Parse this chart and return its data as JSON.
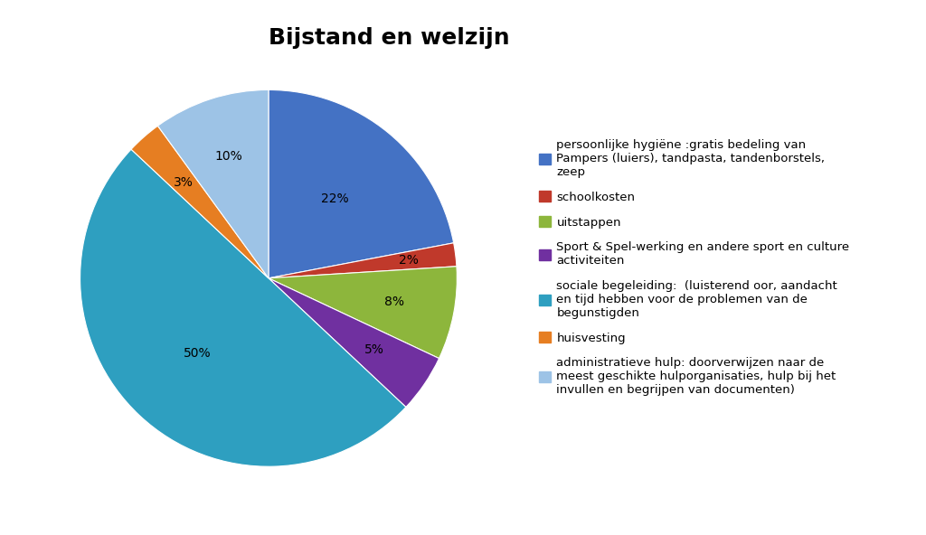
{
  "title": "Bijstand en welzijn",
  "slices": [
    22,
    2,
    8,
    5,
    50,
    3,
    10
  ],
  "colors": [
    "#4472c4",
    "#c0392b",
    "#8db63c",
    "#7030a0",
    "#2e9fc0",
    "#e67e22",
    "#9dc3e6"
  ],
  "labels": [
    "persoonlijke hygiëne :gratis bedeling van\nPampers (luiers), tandpasta, tandenborstels,\nzeep",
    "schoolkosten",
    "uitstappen",
    "Sport & Spel-werking en andere sport en culture\nactiviteiten",
    "sociale begeleiding:  (luisterend oor, aandacht\nen tijd hebben voor de problemen van de\nbegunstigden",
    "huisvesting",
    "administratieve hulp: doorverwijzen naar de\nmeest geschikte hulporganisaties, hulp bij het\ninvullen en begrijpen van documenten)"
  ],
  "pct_labels": [
    "22%",
    "2%",
    "8%",
    "5%",
    "50%",
    "3%",
    "10%"
  ],
  "startangle": 90,
  "title_fontsize": 18,
  "label_fontsize": 9.5,
  "pct_fontsize": 10,
  "background_color": "#ffffff"
}
